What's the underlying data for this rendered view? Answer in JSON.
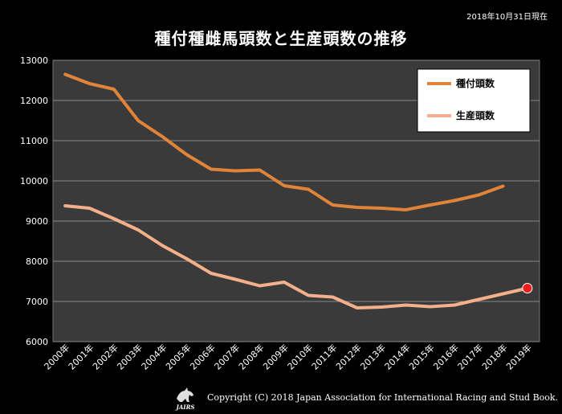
{
  "header": {
    "date_note": "2018年10月31日現在",
    "copyright": "Copyright (C) 2018 Japan Association for International Racing and Stud Book.",
    "logo_text": "JAIRS"
  },
  "chart_data": {
    "type": "line",
    "title": "種付種雌馬頭数と生産頭数の推移",
    "categories": [
      "2000年",
      "2001年",
      "2002年",
      "2003年",
      "2004年",
      "2005年",
      "2006年",
      "2007年",
      "2008年",
      "2009年",
      "2010年",
      "2011年",
      "2012年",
      "2013年",
      "2014年",
      "2015年",
      "2016年",
      "2017年",
      "2018年",
      "2019年"
    ],
    "ylim": [
      6000,
      13000
    ],
    "yticks": [
      6000,
      7000,
      8000,
      9000,
      10000,
      11000,
      12000,
      13000
    ],
    "grid": true,
    "legend_position": "top-right",
    "series": [
      {
        "name": "種付頭数",
        "color": "#e0843a",
        "values": [
          12650,
          12420,
          12280,
          11500,
          11100,
          10650,
          10290,
          10250,
          10270,
          9880,
          9790,
          9400,
          9340,
          9320,
          9280,
          9400,
          9510,
          9650,
          9870,
          null
        ]
      },
      {
        "name": "生産頭数",
        "color": "#f4b08a",
        "values": [
          9380,
          9320,
          9060,
          8780,
          8390,
          8060,
          7700,
          7550,
          7390,
          7480,
          7150,
          7110,
          6840,
          6860,
          6910,
          6870,
          6910,
          7050,
          7190,
          7330
        ]
      }
    ],
    "highlight_point": {
      "series": 1,
      "index": 19,
      "color": "#ee1c1c"
    }
  },
  "colors": {
    "background": "#000000",
    "plot_area": "#3a3a3a",
    "grid": "#888888",
    "legend_bg": "#ffffff"
  }
}
